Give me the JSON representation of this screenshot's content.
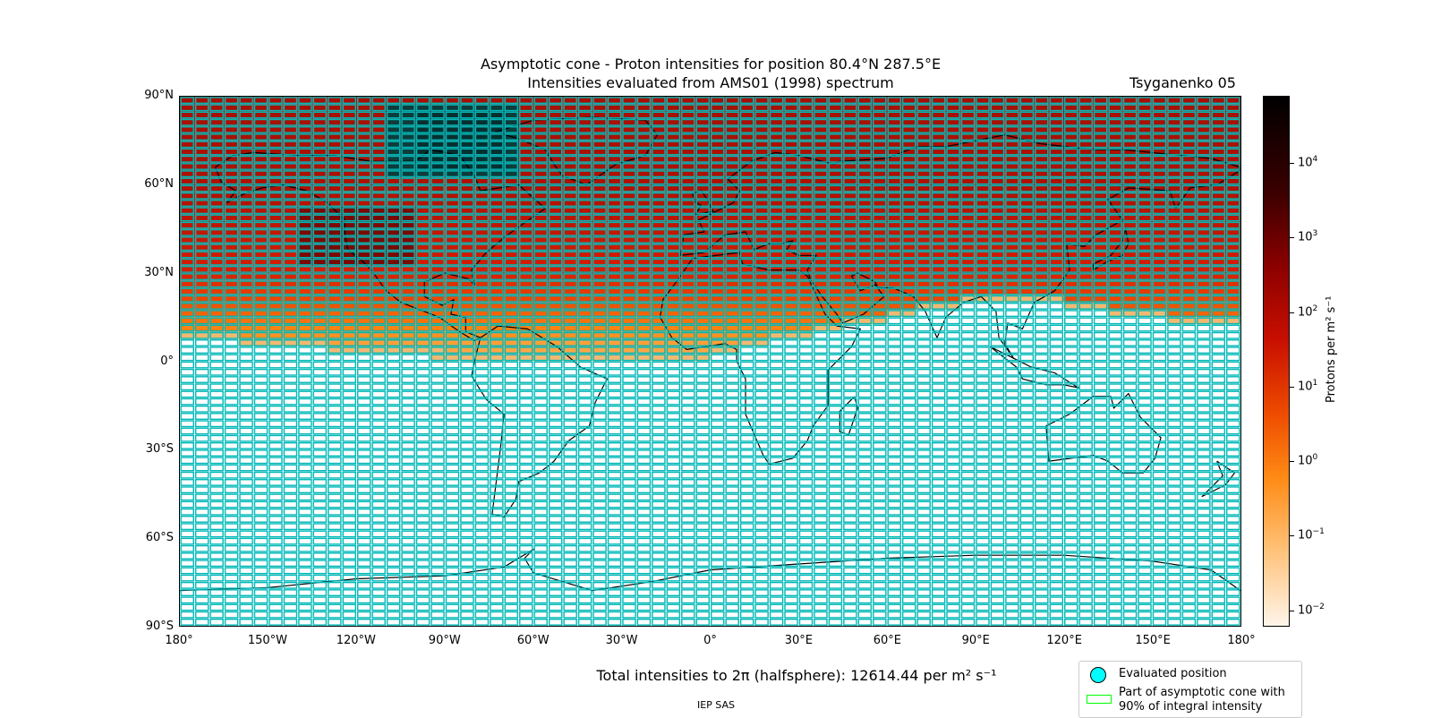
{
  "title": {
    "line1": "Asymptotic cone - Proton intensities for position 80.4°N 287.5°E",
    "line2": "Intensities evaluated from AMS01 (1998) spectrum",
    "model": "Tsyganenko 05"
  },
  "map": {
    "lat_labels": [
      "90°N",
      "60°N",
      "30°N",
      "0°",
      "30°S",
      "60°S",
      "90°S"
    ],
    "lon_labels": [
      "180°",
      "150°W",
      "120°W",
      "90°W",
      "60°W",
      "30°W",
      "0°",
      "30°E",
      "60°E",
      "90°E",
      "120°E",
      "150°E",
      "180°"
    ],
    "lat_range": [
      -90,
      90
    ],
    "lon_range": [
      -180,
      180
    ],
    "grid_cell_deg": [
      5,
      2.5
    ],
    "grid_color": "#00b8b8",
    "coastline_color": "#000000"
  },
  "colorbar": {
    "label": "Protons per m² s⁻¹",
    "ticks": [
      "10^4",
      "10^3",
      "10^2",
      "10^1",
      "10^0",
      "10^-1",
      "10^-2"
    ],
    "scale": "log",
    "range": [
      0.006,
      80000
    ]
  },
  "footer": {
    "total_text": "Total intensities to 2π (halfsphere): 12614.44 per m² s⁻¹",
    "credit": "IEP SAS"
  },
  "legend": {
    "items": [
      {
        "label": "Evaluated position",
        "marker": "cyan-circle",
        "color": "#00ffff"
      },
      {
        "label": "Part of asymptotic cone with 90% of integral intensity",
        "marker": "green-outline-box",
        "color": "#00ff00"
      }
    ]
  },
  "chart_data": {
    "type": "heatmap",
    "title": "Asymptotic cone - Proton intensities for position 80.4°N 287.5°E",
    "subtitle": "Intensities evaluated from AMS01 (1998) spectrum",
    "xlabel": "",
    "ylabel": "",
    "xlim": [
      -180,
      180
    ],
    "ylim": [
      -90,
      90
    ],
    "colorbar_label": "Protons per m² s⁻¹",
    "colorbar_scale": "log",
    "colorbar_range": [
      0.006,
      80000
    ],
    "total_intensity": 12614.44,
    "evaluated_position": {
      "lat": 80.4,
      "lon_east": 287.5
    },
    "intensity_boundary_lat_by_lon": [
      [
        -180,
        8
      ],
      [
        -150,
        5
      ],
      [
        -120,
        3
      ],
      [
        -90,
        1
      ],
      [
        -60,
        0
      ],
      [
        -30,
        0
      ],
      [
        0,
        1
      ],
      [
        30,
        8
      ],
      [
        60,
        14
      ],
      [
        90,
        20
      ],
      [
        120,
        19
      ],
      [
        150,
        14
      ],
      [
        180,
        11
      ]
    ],
    "intensity_profile": [
      {
        "lat": 90,
        "value": 150
      },
      {
        "lat": 60,
        "value": 120
      },
      {
        "lat": 30,
        "value": 40
      },
      {
        "lat": 20,
        "value": 10
      },
      {
        "lat": 10,
        "value": 1
      },
      {
        "lat": 5,
        "value": 0.3
      }
    ]
  }
}
